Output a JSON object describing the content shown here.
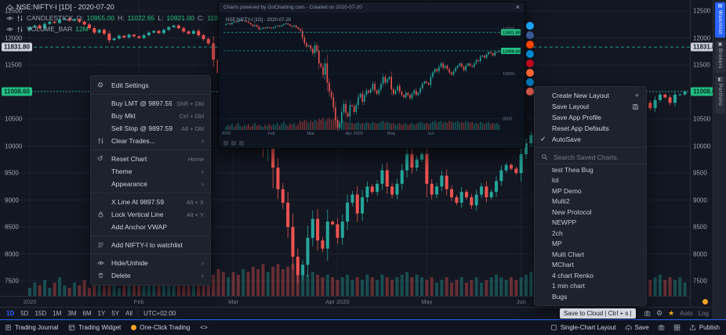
{
  "colors": {
    "bg": "#131722",
    "panel": "#1e222d",
    "border": "#2a2e39",
    "accent": "#2962ff",
    "green": "#26a69a",
    "red": "#ef5350",
    "badge_green": "#23c186",
    "badge_grey": "#cdd2dc",
    "orange": "#f7a325"
  },
  "header": {
    "symbol": "NSE:NIFTY-I [1D] - 2020-07-20",
    "series": "CANDLESTICK",
    "o_label": "O:",
    "o": "10955.00",
    "h_label": "H:",
    "h": "11022.65",
    "l_label": "L:",
    "l": "10921.00",
    "c_label": "C:",
    "c": "11008.6",
    "volume_series": "VOLUME_BAR",
    "volume_value": "12M"
  },
  "price_axis": {
    "ticks": [
      12500,
      12000,
      11500,
      10500,
      10000,
      9500,
      9000,
      8500,
      8000,
      7500
    ],
    "badges": [
      {
        "text": "11831.80",
        "price": 11831.8,
        "style": "grey"
      },
      {
        "text": "11008.60",
        "price": 11008.6,
        "style": "green"
      }
    ]
  },
  "chart_data": {
    "type": "candlestick",
    "symbol": "NSE:NIFTY-I",
    "interval": "1D",
    "ylim": [
      7200,
      12700
    ],
    "current_price": 11008.6,
    "level_line": 11831.8,
    "up_color": "#26a69a",
    "down_color": "#ef5350",
    "open_seed": 12150,
    "closes": [
      12200,
      12230,
      12180,
      12260,
      12300,
      12280,
      12340,
      12360,
      12320,
      12350,
      12300,
      12250,
      12180,
      12100,
      12150,
      12080,
      11960,
      11990,
      12040,
      12010,
      12060,
      12030,
      12000,
      12050,
      12100,
      12130,
      12090,
      12150,
      12200,
      12230,
      12180,
      12120,
      12080,
      12130,
      12050,
      11980,
      11900,
      11600,
      11350,
      11200,
      11250,
      11100,
      10900,
      11250,
      11000,
      10450,
      10300,
      9950,
      10450,
      9600,
      9200,
      8950,
      8500,
      7950,
      7610,
      7800,
      8300,
      8650,
      8250,
      8100,
      8600,
      8550,
      8300,
      8600,
      8950,
      9100,
      8750,
      9050,
      9250,
      9150,
      9300,
      9550,
      9250,
      9100,
      9300,
      9550,
      9850,
      9600,
      9750,
      9850,
      9300,
      9100,
      9250,
      9450,
      9200,
      9050,
      8950,
      9150,
      9050,
      8900,
      9100,
      9250,
      9050,
      9150,
      9350,
      9550,
      9650,
      9580,
      9500,
      9850,
      10050,
      10200,
      10100,
      10300,
      10450,
      10250,
      10350,
      10200,
      10050,
      9950,
      10100,
      10250,
      10350,
      10450,
      10300,
      10150,
      10350,
      10450,
      10350,
      10300,
      10450,
      10600,
      10550,
      10750,
      10800,
      10700,
      10850,
      10950,
      10900,
      10800,
      10950,
      10955,
      11008.6
    ],
    "volumes": [
      3,
      5,
      4,
      6,
      3,
      5,
      7,
      4,
      3,
      5,
      4,
      6,
      3,
      5,
      7,
      4,
      5,
      4,
      3,
      5,
      4,
      6,
      4,
      6,
      5,
      7,
      4,
      6,
      8,
      5,
      4,
      6,
      5,
      7,
      4,
      6,
      9,
      8,
      10,
      9,
      7,
      9,
      8,
      10,
      9,
      11,
      10,
      12,
      9,
      11,
      12,
      10,
      11,
      12,
      10,
      9,
      8,
      9,
      8,
      7,
      8,
      7,
      6,
      7,
      8,
      6,
      7,
      6,
      8,
      7,
      6,
      8,
      7,
      6,
      7,
      8,
      9,
      7,
      8,
      7,
      6,
      7,
      5,
      6,
      7,
      5,
      6,
      7,
      5,
      6,
      7,
      5,
      6,
      7,
      8,
      7,
      6,
      7,
      6,
      7,
      8,
      9,
      7,
      8,
      9,
      7,
      8,
      7,
      9,
      8,
      7,
      8,
      9,
      7,
      8,
      7,
      9,
      8,
      7,
      8,
      6,
      7,
      6,
      8,
      7,
      6,
      7,
      8,
      6,
      7,
      6,
      7,
      5
    ],
    "months": [
      {
        "label": "2020",
        "i": 0
      },
      {
        "label": "Feb",
        "i": 22
      },
      {
        "label": "Mar",
        "i": 41
      },
      {
        "label": "Apr 2020",
        "i": 62
      },
      {
        "label": "May",
        "i": 80
      },
      {
        "label": "Jun",
        "i": 99
      }
    ]
  },
  "context_menu": {
    "submenu_glyph": "›",
    "items": [
      {
        "icon": "gear",
        "label": "Edit Settings"
      },
      {
        "divider": true
      },
      {
        "label": "Buy LMT @ 9897.59",
        "shortcut": "Shift + Dbl"
      },
      {
        "label": "Buy Mkt",
        "shortcut": "Ctrl + Dbl"
      },
      {
        "label": "Sell Stop @ 9897.59",
        "shortcut": "Alt + Dbl"
      },
      {
        "icon": "sliders",
        "label": "Clear Trades...",
        "submenu": true
      },
      {
        "divider": true
      },
      {
        "icon": "reset",
        "label": "Reset Chart",
        "shortcut": "Home"
      },
      {
        "label": "Theme",
        "submenu": true
      },
      {
        "label": "Appearance",
        "submenu": true
      },
      {
        "divider": true
      },
      {
        "label": "X Line At 9897.59",
        "shortcut": "Alt + X"
      },
      {
        "icon": "lock",
        "label": "Lock Vertical Line",
        "shortcut": "Alt + Y"
      },
      {
        "label": "Add Anchor VWAP"
      },
      {
        "divider": true
      },
      {
        "icon": "wlist",
        "label": "Add NIFTY-I to watchlist"
      },
      {
        "divider": true
      },
      {
        "icon": "eye",
        "label": "Hide/Unhide",
        "submenu": true
      },
      {
        "icon": "trash",
        "label": "Delete",
        "submenu": true
      }
    ]
  },
  "layout_menu": {
    "items": [
      {
        "label": "Create New Layout",
        "right_icon": "plus"
      },
      {
        "label": "Save Layout",
        "right_icon": "save"
      },
      {
        "label": "Save App Profile"
      },
      {
        "label": "Reset App Defaults"
      },
      {
        "label": "AutoSave",
        "left_icon": "check"
      }
    ],
    "search_placeholder": "Search Saved Charts.",
    "saved_charts": [
      "test Thea Bug",
      "lol",
      "MP Demo",
      "Multi2",
      "New Protocol",
      "NEWPP",
      "2ch",
      "MP",
      "Multi Chart",
      "MChart",
      "4 chart Renko",
      "1 min chart",
      "Bugs"
    ]
  },
  "popup": {
    "title": "Charts powered by GoCharting.com - Created on 2020-07-20",
    "legend": "NSE:NIFTY-I [1D] - 2020-07-20",
    "close_glyph": "×",
    "mini_ticks": [
      12000,
      10000,
      8000
    ]
  },
  "share": {
    "icons": [
      {
        "name": "twitter",
        "color": "#1da1f2"
      },
      {
        "name": "facebook",
        "color": "#3b5998"
      },
      {
        "name": "reddit",
        "color": "#ff4500"
      },
      {
        "name": "telegram",
        "color": "#0088cc"
      },
      {
        "name": "pinterest",
        "color": "#bd081c"
      },
      {
        "name": "stocktwits",
        "color": "#ff6534"
      },
      {
        "name": "linkedin",
        "color": "#0077b5"
      },
      {
        "name": "email",
        "color": "#e05a4e"
      }
    ]
  },
  "sidebar": {
    "tabs": [
      {
        "label": "Watchlist",
        "active": true
      },
      {
        "label": "Brokers",
        "active": false
      },
      {
        "label": "Portfolio",
        "active": false
      }
    ]
  },
  "timeframe_bar": {
    "buttons": [
      "1D",
      "5D",
      "15D",
      "1M",
      "3M",
      "6M",
      "1Y",
      "5Y",
      "All"
    ],
    "active": "1D",
    "separator": "|",
    "timezone": "UTC+02:00",
    "right_labels": [
      "Auto",
      "Log"
    ]
  },
  "bottom_bar": {
    "left": [
      {
        "icon": "journal",
        "label": "Trading Journal"
      },
      {
        "icon": "widget",
        "label": "Trading Widget"
      },
      {
        "icon": "orange-dot",
        "label": "One-Click Trading"
      },
      {
        "icon": "",
        "label": "<>"
      }
    ],
    "right": [
      {
        "icon": "grid1",
        "label": "Single-Chart Layout"
      },
      {
        "icon": "cloud",
        "label": "Save"
      },
      {
        "icon": "camera",
        "label": ""
      },
      {
        "icon": "grid4",
        "label": ""
      },
      {
        "icon": "publish",
        "label": "Publish"
      }
    ]
  },
  "tooltip": {
    "text": "Save to Cloud | Ctrl + s |"
  },
  "status": {
    "dot_color": "#f7a325"
  }
}
